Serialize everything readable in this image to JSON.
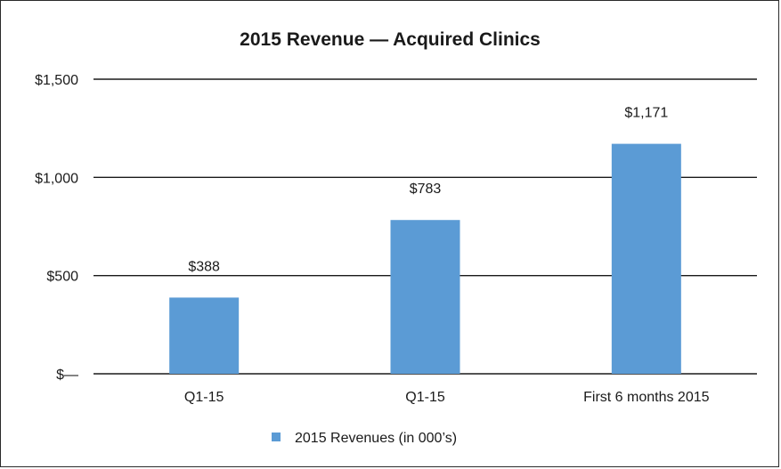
{
  "chart_data": {
    "type": "bar",
    "title": "2015 Revenue —  Acquired Clinics",
    "categories": [
      "Q1-15",
      "Q1-15",
      "First 6 months 2015"
    ],
    "series": [
      {
        "name": "2015 Revenues (in 000’s)",
        "values": [
          388,
          783,
          1171
        ],
        "color": "#5b9bd5"
      }
    ],
    "data_labels": [
      "$388",
      "$783",
      "$1,171"
    ],
    "ylim": [
      0,
      1500
    ],
    "yticks": [
      0,
      500,
      1000,
      1500
    ],
    "ytick_labels": [
      "$—",
      "$500",
      "$1,000",
      "$1,500"
    ],
    "grid": true,
    "legend_position": "bottom"
  }
}
